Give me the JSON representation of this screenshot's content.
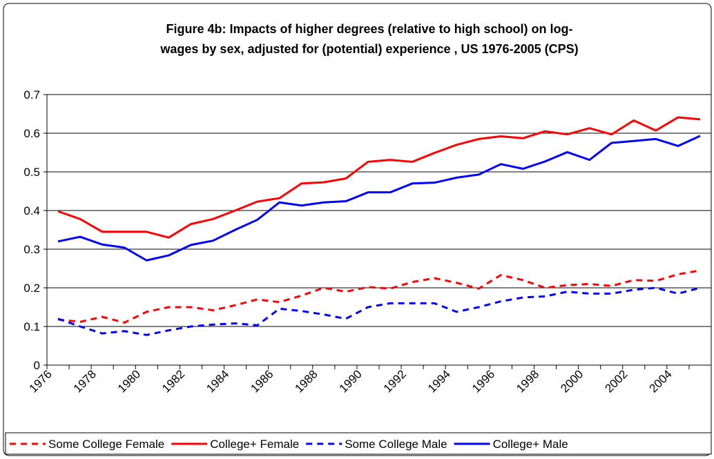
{
  "chart_data": {
    "type": "line",
    "title": [
      "Figure 4b: Impacts of higher degrees (relative to high school) on log-",
      "wages by sex, adjusted for (potential) experience , US 1976-2005 (CPS)"
    ],
    "categories": [
      "1976",
      null,
      "1978",
      null,
      "1980",
      null,
      "1982",
      null,
      "1984",
      null,
      "1986",
      null,
      "1988",
      null,
      "1990",
      null,
      "1992",
      null,
      "1994",
      null,
      "1996",
      null,
      "1998",
      null,
      "2000",
      null,
      "2002",
      null,
      "2004",
      null
    ],
    "series": [
      {
        "name": "Some College Female",
        "color": "#ff0000",
        "dash": true,
        "values": [
          0.118,
          0.112,
          0.125,
          0.11,
          0.138,
          0.15,
          0.15,
          0.142,
          0.155,
          0.17,
          0.163,
          0.18,
          0.2,
          0.19,
          0.202,
          0.198,
          0.215,
          0.225,
          0.213,
          0.198,
          0.233,
          0.22,
          0.2,
          0.207,
          0.21,
          0.205,
          0.22,
          0.218,
          0.235,
          0.245
        ]
      },
      {
        "name": "College+ Female",
        "color": "#ff0000",
        "dash": false,
        "values": [
          0.398,
          0.378,
          0.345,
          0.345,
          0.345,
          0.33,
          0.365,
          0.378,
          0.4,
          0.423,
          0.432,
          0.47,
          0.473,
          0.483,
          0.526,
          0.531,
          0.526,
          0.549,
          0.57,
          0.585,
          0.592,
          0.587,
          0.605,
          0.597,
          0.613,
          0.597,
          0.633,
          0.607,
          0.641,
          0.636
        ]
      },
      {
        "name": "Some College Male",
        "color": "#0000ff",
        "dash": true,
        "values": [
          0.12,
          0.1,
          0.082,
          0.088,
          0.078,
          0.09,
          0.1,
          0.105,
          0.108,
          0.103,
          0.146,
          0.14,
          0.131,
          0.12,
          0.15,
          0.16,
          0.16,
          0.16,
          0.138,
          0.15,
          0.165,
          0.175,
          0.178,
          0.19,
          0.185,
          0.185,
          0.195,
          0.2,
          0.185,
          0.2
        ]
      },
      {
        "name": "College+ Male",
        "color": "#0000ff",
        "dash": false,
        "values": [
          0.32,
          0.332,
          0.312,
          0.304,
          0.271,
          0.284,
          0.311,
          0.322,
          0.35,
          0.376,
          0.421,
          0.413,
          0.421,
          0.424,
          0.447,
          0.447,
          0.47,
          0.472,
          0.485,
          0.493,
          0.52,
          0.508,
          0.527,
          0.551,
          0.531,
          0.575,
          0.58,
          0.585,
          0.567,
          0.593
        ]
      }
    ],
    "ylim": [
      0,
      0.7
    ],
    "yticks": [
      0,
      0.1,
      0.2,
      0.3,
      0.4,
      0.5,
      0.6,
      0.7
    ],
    "grid": true,
    "legend": "bottom"
  }
}
